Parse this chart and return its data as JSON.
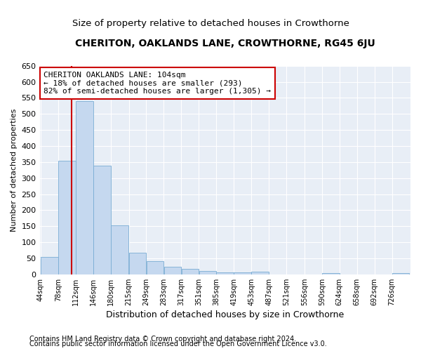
{
  "title": "CHERITON, OAKLANDS LANE, CROWTHORNE, RG45 6JU",
  "subtitle": "Size of property relative to detached houses in Crowthorne",
  "xlabel": "Distribution of detached houses by size in Crowthorne",
  "ylabel": "Number of detached properties",
  "footnote1": "Contains HM Land Registry data © Crown copyright and database right 2024.",
  "footnote2": "Contains public sector information licensed under the Open Government Licence v3.0.",
  "annotation_line1": "CHERITON OAKLANDS LANE: 104sqm",
  "annotation_line2": "← 18% of detached houses are smaller (293)",
  "annotation_line3": "82% of semi-detached houses are larger (1,305) →",
  "bar_color": "#c5d8ef",
  "bar_edge_color": "#7aadd4",
  "red_line_color": "#cc0000",
  "categories": [
    "44sqm",
    "78sqm",
    "112sqm",
    "146sqm",
    "180sqm",
    "215sqm",
    "249sqm",
    "283sqm",
    "317sqm",
    "351sqm",
    "385sqm",
    "419sqm",
    "453sqm",
    "487sqm",
    "521sqm",
    "556sqm",
    "590sqm",
    "624sqm",
    "658sqm",
    "692sqm",
    "726sqm"
  ],
  "bin_left_edges": [
    44,
    78,
    112,
    146,
    180,
    215,
    249,
    283,
    317,
    351,
    385,
    419,
    453,
    487,
    521,
    556,
    590,
    624,
    658,
    692,
    726
  ],
  "bin_width": 34,
  "values": [
    55,
    355,
    540,
    338,
    152,
    68,
    42,
    24,
    17,
    10,
    7,
    7,
    9,
    0,
    0,
    0,
    5,
    0,
    0,
    0,
    5
  ],
  "red_line_x": 104,
  "ylim": [
    0,
    650
  ],
  "yticks": [
    0,
    50,
    100,
    150,
    200,
    250,
    300,
    350,
    400,
    450,
    500,
    550,
    600,
    650
  ],
  "background_color": "#e8eef6",
  "grid_color": "#ffffff",
  "title_fontsize": 10,
  "subtitle_fontsize": 9.5,
  "annotation_box_facecolor": "#ffffff",
  "annotation_box_edgecolor": "#cc0000",
  "annotation_fontsize": 8,
  "footnote_fontsize": 7
}
